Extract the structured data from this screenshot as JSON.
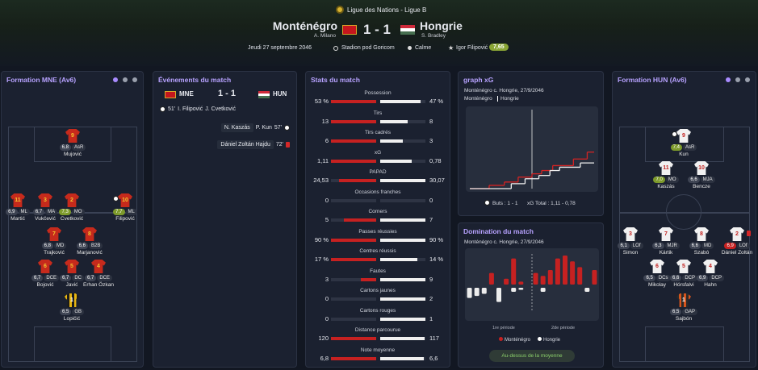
{
  "header": {
    "competition": "Ligue des Nations - Ligue B",
    "home_team": "Monténégro",
    "home_manager": "A. Milano",
    "score": "1 - 1",
    "away_team": "Hongrie",
    "away_manager": "S. Bradley",
    "date": "Jeudi 27 septembre 2046",
    "stadium": "Stadion pod Goricom",
    "weather": "Calme",
    "player_of_match": "Igor Filipović",
    "player_of_match_rating": "7,65"
  },
  "home_formation": {
    "title": "Formation MNE (Av6)",
    "players": [
      {
        "number": "9",
        "rating": "6,8",
        "role": "AsR",
        "name": "Mujović"
      },
      {
        "number": "11",
        "rating": "6,9",
        "role": "ML",
        "name": "Martić"
      },
      {
        "number": "3",
        "rating": "6,7",
        "role": "MA",
        "name": "Vukčević"
      },
      {
        "number": "2",
        "rating": "7,3",
        "role": "MO",
        "name": "Cvetković"
      },
      {
        "number": "10",
        "rating": "7,7",
        "role": "ML",
        "name": "Filipović",
        "goal": true
      },
      {
        "number": "7",
        "rating": "6,8",
        "role": "MD",
        "name": "Trajković"
      },
      {
        "number": "8",
        "rating": "6,6",
        "role": "B2B",
        "name": "Marjanović"
      },
      {
        "number": "6",
        "rating": "6,7",
        "role": "DCE",
        "name": "Bojović"
      },
      {
        "number": "5",
        "rating": "6,7",
        "role": "DC",
        "name": "Javić"
      },
      {
        "number": "4",
        "rating": "6,7",
        "role": "DCE",
        "name": "Erhan Özkan"
      },
      {
        "number": "1",
        "rating": "6,5",
        "role": "GB",
        "name": "Lopičić"
      }
    ]
  },
  "events": {
    "title": "Événements du match",
    "home": "MNE",
    "score": "1 - 1",
    "away": "HUN",
    "items": [
      {
        "side": "home",
        "kind": "goal",
        "minute": "51'",
        "player": "I. Filipović",
        "assist": "J. Cvetković"
      },
      {
        "side": "away",
        "kind": "goal",
        "minute": "57'",
        "player": "P. Kun",
        "assist": "N. Kaszás"
      },
      {
        "side": "away",
        "kind": "red-card",
        "minute": "72'",
        "player": "Dániel Zoltán Hajdu"
      }
    ]
  },
  "stats": {
    "title": "Stats du match",
    "rows": [
      {
        "label": "Possession",
        "home": {
          "value": 53,
          "label": "53 %"
        },
        "away": {
          "value": 47,
          "label": "47 %"
        }
      },
      {
        "label": "Tirs",
        "home": 13,
        "away": 8
      },
      {
        "label": "Tirs cadrés",
        "home": 6,
        "away": 3
      },
      {
        "label": "xG",
        "home": {
          "value": 1.11,
          "label": "1,11"
        },
        "away": {
          "value": 0.78,
          "label": "0,78"
        }
      },
      {
        "label": "PAPAD",
        "home": {
          "value": 24.53,
          "label": "24,53"
        },
        "away": {
          "value": 30.07,
          "label": "30,07"
        }
      },
      {
        "label": "Occasions franches",
        "home": 0,
        "away": 0
      },
      {
        "label": "Corners",
        "home": 5,
        "away": 7
      },
      {
        "label": "Passes réussies",
        "home": {
          "value": 90,
          "label": "90 %"
        },
        "away": {
          "value": 90,
          "label": "90 %"
        }
      },
      {
        "label": "Centres réussis",
        "home": {
          "value": 17,
          "label": "17 %"
        },
        "away": {
          "value": 14,
          "label": "14 %"
        }
      },
      {
        "label": "Fautes",
        "home": 3,
        "away": 9
      },
      {
        "label": "Cartons jaunes",
        "home": 0,
        "away": 2
      },
      {
        "label": "Cartons rouges",
        "home": 0,
        "away": 1
      },
      {
        "label": "Distance parcourue",
        "home": 120,
        "away": 117
      },
      {
        "label": "Note moyenne",
        "home": {
          "value": 6.8,
          "label": "6,8"
        },
        "away": {
          "value": 6.6,
          "label": "6,6"
        }
      }
    ]
  },
  "xg_graph": {
    "title": "graph xG",
    "subtitle": "Monténégro c. Hongrie, 27/9/2046",
    "legend": [
      "Monténégro",
      "Hongrie"
    ],
    "goals": "Buts : 1 - 1",
    "xg_total": "xG Total : 1,11 - 0,78",
    "xlim": [
      0,
      90
    ],
    "ylim": [
      0,
      2.4
    ],
    "home": {
      "x": [
        0,
        14,
        25,
        35,
        45,
        52,
        60,
        75,
        85,
        90
      ],
      "y": [
        0,
        0.1,
        0.2,
        0.35,
        0.45,
        0.55,
        0.7,
        0.9,
        1.11,
        1.11
      ]
    },
    "away": {
      "x": [
        0,
        30,
        40,
        50,
        58,
        65,
        80,
        90
      ],
      "y": [
        0,
        0.15,
        0.3,
        0.4,
        0.55,
        0.65,
        0.78,
        0.78
      ]
    }
  },
  "domination": {
    "title": "Domination du match",
    "subtitle": "Monténégro c. Hongrie, 27/9/2046",
    "periods": [
      "1re période",
      "2de période"
    ],
    "legend": [
      "Monténégro",
      "Hongrie"
    ],
    "button": "Au-dessus de la moyenne",
    "ylim": [
      0,
      10
    ],
    "home": [
      null,
      null,
      null,
      4,
      null,
      2,
      9,
      1,
      null,
      4,
      3,
      5,
      9,
      10,
      8,
      6,
      null,
      5
    ],
    "away": [
      5,
      4,
      3,
      null,
      7,
      null,
      2,
      1,
      null,
      null,
      2,
      null,
      null,
      null,
      null,
      null,
      2,
      null
    ]
  },
  "away_formation": {
    "title": "Formation HUN (Av6)",
    "players": [
      {
        "number": "9",
        "rating": "7,4",
        "role": "AsR",
        "name": "Kun",
        "goal": true
      },
      {
        "number": "11",
        "rating": "7,0",
        "role": "MO",
        "name": "Kaszás"
      },
      {
        "number": "10",
        "rating": "6,6",
        "role": "MJA",
        "name": "Bencze"
      },
      {
        "number": "3",
        "rating": "6,1",
        "role": "LOf",
        "name": "Simon"
      },
      {
        "number": "7",
        "rating": "6,3",
        "role": "MJR",
        "name": "Kártik"
      },
      {
        "number": "8",
        "rating": "6,6",
        "role": "MD",
        "name": "Szabó"
      },
      {
        "number": "2",
        "rating": "6,9",
        "role": "LOf",
        "name": "Dániel Zoltán",
        "red_card": true
      },
      {
        "number": "6",
        "rating": "6,5",
        "role": "DCs",
        "name": "Mikolay"
      },
      {
        "number": "5",
        "rating": "6,6",
        "role": "DCP",
        "name": "Hórsfalvi"
      },
      {
        "number": "4",
        "rating": "6,9",
        "role": "DCP",
        "name": "Hahn"
      },
      {
        "number": "1",
        "rating": "6,5",
        "role": "GAP",
        "name": "Sajbón"
      }
    ]
  }
}
